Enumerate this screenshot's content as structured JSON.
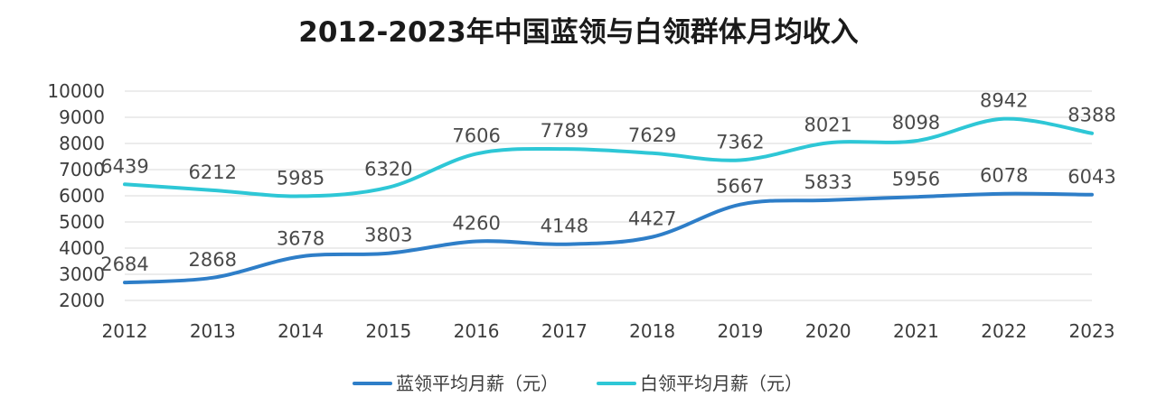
{
  "chart_data": {
    "type": "line",
    "title": "2012-2023年中国蓝领与白领群体月均收入",
    "xlabel": "",
    "ylabel": "",
    "categories": [
      "2012",
      "2013",
      "2014",
      "2015",
      "2016",
      "2017",
      "2018",
      "2019",
      "2020",
      "2021",
      "2022",
      "2023"
    ],
    "ylim": [
      2000,
      10000
    ],
    "yticks": [
      2000,
      3000,
      4000,
      5000,
      6000,
      7000,
      8000,
      9000,
      10000
    ],
    "grid": true,
    "smooth": true,
    "legend_position": "bottom",
    "series": [
      {
        "name": "蓝领平均月薪（元）",
        "color": "#2e7ec8",
        "values": [
          2684,
          2868,
          3678,
          3803,
          4260,
          4148,
          4427,
          5667,
          5833,
          5956,
          6078,
          6043
        ]
      },
      {
        "name": "白领平均月薪（元）",
        "color": "#2ec7d6",
        "values": [
          6439,
          6212,
          5985,
          6320,
          7606,
          7789,
          7629,
          7362,
          8021,
          8098,
          8942,
          8388
        ]
      }
    ]
  }
}
